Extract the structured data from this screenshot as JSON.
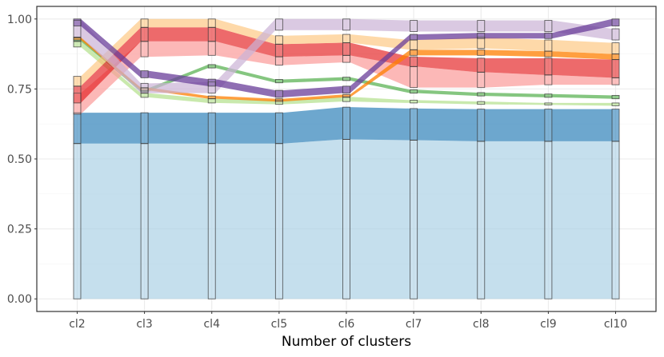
{
  "chart_data": {
    "type": "area",
    "title": "",
    "xlabel": "Number of clusters",
    "ylabel": "",
    "ylim": [
      0,
      1.0
    ],
    "grid": true,
    "categories": [
      "cl2",
      "cl3",
      "cl4",
      "cl5",
      "cl6",
      "cl7",
      "cl8",
      "cl9",
      "cl10"
    ],
    "y_ticks": [
      0.0,
      0.25,
      0.5,
      0.75,
      1.0
    ],
    "y_tick_labels": [
      "0.00",
      "0.25",
      "0.50",
      "0.75",
      "1.00"
    ],
    "colors": {
      "light_blue": "#a6cee3",
      "dark_blue": "#1f78b4",
      "light_green": "#b2df8a",
      "dark_green": "#33a02c",
      "light_red": "#fb9a99",
      "dark_red": "#e31a1c",
      "light_orange": "#fdbf6f",
      "dark_orange": "#ff7f00",
      "light_purple": "#cab2d6",
      "dark_purple": "#6a3d9a",
      "panel_border": "#333333",
      "grid_major": "#ebebeb",
      "grid_minor": "#f5f5f5",
      "box_stroke": "#333333"
    },
    "series": [
      {
        "name": "band-light-blue",
        "color": "light_blue",
        "opacity": 0.65,
        "lower": [
          0.0,
          0.0,
          0.0,
          0.0,
          0.0,
          0.0,
          0.0,
          0.0,
          0.0
        ],
        "upper": [
          0.555,
          0.555,
          0.555,
          0.555,
          0.57,
          0.567,
          0.563,
          0.563,
          0.563
        ]
      },
      {
        "name": "band-dark-blue",
        "color": "dark_blue",
        "opacity": 0.65,
        "lower": [
          0.555,
          0.555,
          0.555,
          0.555,
          0.57,
          0.567,
          0.563,
          0.563,
          0.563
        ],
        "upper": [
          0.665,
          0.665,
          0.665,
          0.665,
          0.685,
          0.68,
          0.678,
          0.678,
          0.678
        ]
      },
      {
        "name": "band-light-green",
        "color": "light_green",
        "opacity": 0.7,
        "lower": [
          0.9,
          0.72,
          0.7,
          0.695,
          0.705,
          0.7,
          0.695,
          0.693,
          0.69
        ],
        "upper": [
          0.92,
          0.735,
          0.715,
          0.71,
          0.722,
          0.71,
          0.705,
          0.7,
          0.7
        ]
      },
      {
        "name": "band-dark-green",
        "color": "dark_green",
        "opacity": 0.6,
        "lower": [
          0.92,
          0.74,
          0.825,
          0.772,
          0.78,
          0.735,
          0.725,
          0.72,
          0.715
        ]
      },
      {
        "name": "band-light-red",
        "color": "light_red",
        "opacity": 0.7,
        "lower": [
          0.66,
          0.865,
          0.87,
          0.835,
          0.845,
          0.755,
          0.755,
          0.765,
          0.765
        ],
        "upper": [
          0.735,
          0.92,
          0.92,
          0.865,
          0.87,
          0.83,
          0.81,
          0.8,
          0.79
        ]
      },
      {
        "name": "band-dark-red",
        "color": "dark_red",
        "opacity": 0.65,
        "lower": [
          0.7,
          0.92,
          0.92,
          0.865,
          0.87,
          0.83,
          0.81,
          0.8,
          0.79
        ],
        "upper": [
          0.76,
          0.97,
          0.97,
          0.91,
          0.915,
          0.865,
          0.86,
          0.86,
          0.855
        ]
      },
      {
        "name": "band-dark-orange",
        "color": "dark_orange",
        "opacity": 0.75,
        "lower": [
          0.925,
          0.745,
          0.715,
          0.705,
          0.72,
          0.87,
          0.87,
          0.865,
          0.855
        ],
        "upper": [
          0.935,
          0.755,
          0.725,
          0.715,
          0.73,
          0.89,
          0.89,
          0.885,
          0.875
        ]
      },
      {
        "name": "band-light-orange",
        "color": "light_orange",
        "opacity": 0.6,
        "lower": [
          0.76,
          0.97,
          0.97,
          0.91,
          0.915,
          0.89,
          0.895,
          0.885,
          0.875
        ],
        "upper": [
          0.795,
          1.0,
          1.0,
          0.94,
          0.945,
          0.925,
          0.935,
          0.925,
          0.915
        ]
      },
      {
        "name": "band-light-purple",
        "color": "light_purple",
        "opacity": 0.7,
        "lower": [
          0.935,
          0.735,
          0.735,
          0.96,
          0.96,
          0.955,
          0.955,
          0.955,
          0.925
        ],
        "upper": [
          0.995,
          0.77,
          0.775,
          1.0,
          1.0,
          0.995,
          0.995,
          0.995,
          0.965
        ]
      },
      {
        "name": "band-dark-purple",
        "color": "dark_purple",
        "opacity": 0.75,
        "lower": [
          0.975,
          0.79,
          0.76,
          0.72,
          0.735,
          0.925,
          0.93,
          0.93,
          0.975
        ],
        "upper": [
          1.0,
          0.815,
          0.785,
          0.745,
          0.76,
          0.945,
          0.95,
          0.95,
          1.0
        ]
      }
    ]
  }
}
